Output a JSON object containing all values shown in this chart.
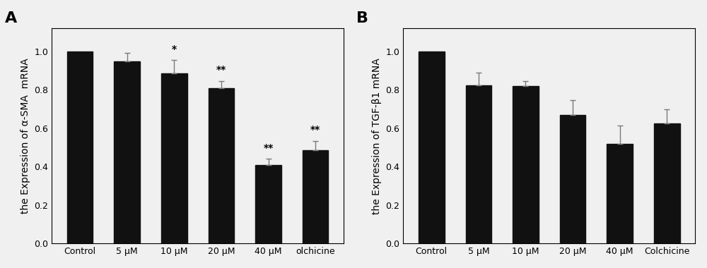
{
  "panel_A": {
    "label": "A",
    "categories": [
      "Control",
      "5 μM",
      "10 μM",
      "20 μM",
      "40 μM",
      "olchicine"
    ],
    "values": [
      1.0,
      0.948,
      0.885,
      0.807,
      0.41,
      0.485
    ],
    "errors": [
      0.0,
      0.045,
      0.07,
      0.04,
      0.03,
      0.05
    ],
    "significance": [
      "",
      "",
      "*",
      "**",
      "**",
      "**"
    ],
    "ylabel": "the Expression of α-SMA  mRNA",
    "ylim": [
      0,
      1.12
    ],
    "yticks": [
      0.0,
      0.2,
      0.4,
      0.6,
      0.8,
      1.0
    ],
    "bar_color": "#111111",
    "error_color": "#7a7a7a"
  },
  "panel_B": {
    "label": "B",
    "categories": [
      "Control",
      "5 μM",
      "10 μM",
      "20 μM",
      "40 μM",
      "Colchicine"
    ],
    "values": [
      1.0,
      0.825,
      0.82,
      0.67,
      0.52,
      0.625
    ],
    "errors": [
      0.0,
      0.065,
      0.025,
      0.075,
      0.095,
      0.075
    ],
    "significance": [
      "",
      "",
      "",
      "",
      "",
      ""
    ],
    "ylabel": "the Expression of TGF-β1 mRNA",
    "ylim": [
      0,
      1.12
    ],
    "yticks": [
      0.0,
      0.2,
      0.4,
      0.6,
      0.8,
      1.0
    ],
    "bar_color": "#111111",
    "error_color": "#7a7a7a"
  },
  "background_color": "#f0f0f0",
  "figure_bg": "#f0f0f0",
  "bar_width": 0.55,
  "label_fontsize": 16,
  "tick_fontsize": 9,
  "ylabel_fontsize": 10,
  "sig_fontsize": 10
}
